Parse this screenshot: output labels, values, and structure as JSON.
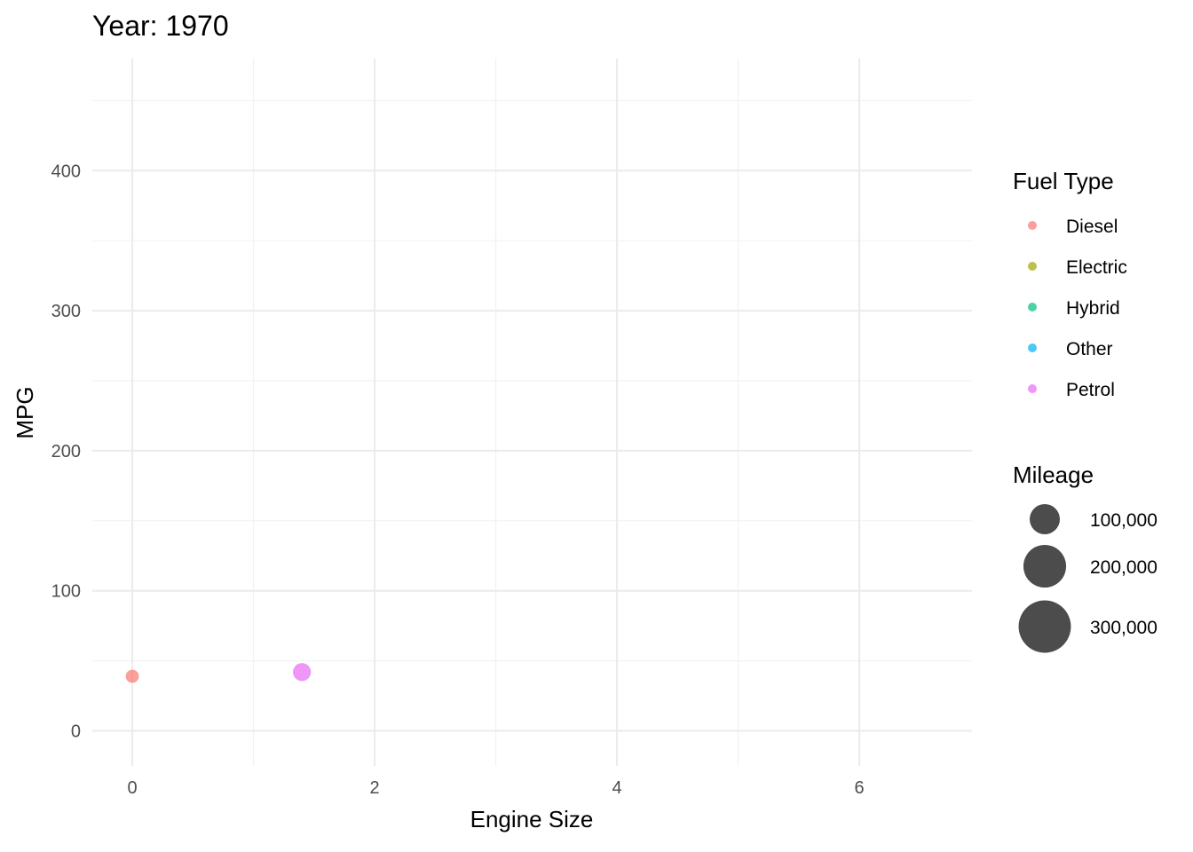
{
  "chart_data": {
    "type": "scatter",
    "title": "Year: 1970",
    "xlabel": "Engine Size",
    "ylabel": "MPG",
    "xlim": [
      -0.33,
      6.93
    ],
    "ylim": [
      -25,
      480
    ],
    "x_ticks": [
      0,
      2,
      4,
      6
    ],
    "x_tick_labels": [
      "0",
      "2",
      "4",
      "6"
    ],
    "y_ticks": [
      0,
      100,
      200,
      300,
      400
    ],
    "y_tick_labels": [
      "0",
      "100",
      "200",
      "300",
      "400"
    ],
    "grid": true,
    "legend_placement": "right",
    "color_legend": {
      "title": "Fuel Type",
      "items": [
        {
          "label": "Diesel",
          "color": "#F8766D"
        },
        {
          "label": "Electric",
          "color": "#A3A500"
        },
        {
          "label": "Hybrid",
          "color": "#00BF7D"
        },
        {
          "label": "Other",
          "color": "#00B0F6"
        },
        {
          "label": "Petrol",
          "color": "#E76BF3"
        }
      ]
    },
    "size_legend": {
      "title": "Mileage",
      "items": [
        {
          "label": "100,000",
          "value": 100000
        },
        {
          "label": "200,000",
          "value": 200000
        },
        {
          "label": "300,000",
          "value": 300000
        }
      ]
    },
    "points": [
      {
        "fuel": "Diesel",
        "x": 0,
        "y": 39,
        "mileage": 45000
      },
      {
        "fuel": "Petrol",
        "x": 1.4,
        "y": 42,
        "mileage": 85000
      }
    ]
  }
}
